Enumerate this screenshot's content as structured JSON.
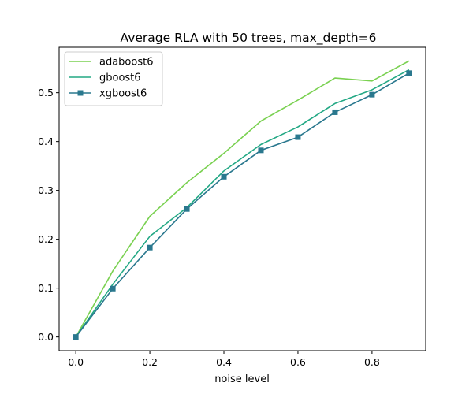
{
  "chart_data": {
    "type": "line",
    "title": "Average RLA with 50 trees, max_depth=6",
    "xlabel": "noise level",
    "ylabel": "",
    "x": [
      0.0,
      0.1,
      0.2,
      0.3,
      0.4,
      0.5,
      0.6,
      0.7,
      0.8,
      0.9
    ],
    "xlim": [
      -0.045,
      0.945
    ],
    "ylim": [
      -0.028,
      0.593
    ],
    "xticks": [
      0.0,
      0.2,
      0.4,
      0.6,
      0.8
    ],
    "xtick_labels": [
      "0.0",
      "0.2",
      "0.4",
      "0.6",
      "0.8"
    ],
    "yticks": [
      0.0,
      0.1,
      0.2,
      0.3,
      0.4,
      0.5
    ],
    "ytick_labels": [
      "0.0",
      "0.1",
      "0.2",
      "0.3",
      "0.4",
      "0.5"
    ],
    "grid": false,
    "legend_position": "top-left",
    "series": [
      {
        "name": "adaboost6",
        "color": "#7ad151",
        "marker": "none",
        "values": [
          0.0,
          0.135,
          0.247,
          0.316,
          0.376,
          0.442,
          0.485,
          0.53,
          0.524,
          0.565
        ]
      },
      {
        "name": "gboost6",
        "color": "#22a884",
        "marker": "none",
        "values": [
          0.0,
          0.108,
          0.206,
          0.265,
          0.34,
          0.394,
          0.43,
          0.478,
          0.506,
          0.547
        ]
      },
      {
        "name": "xgboost6",
        "color": "#2a788e",
        "marker": "square",
        "values": [
          0.0,
          0.099,
          0.183,
          0.262,
          0.328,
          0.382,
          0.409,
          0.46,
          0.496,
          0.54
        ]
      }
    ]
  }
}
